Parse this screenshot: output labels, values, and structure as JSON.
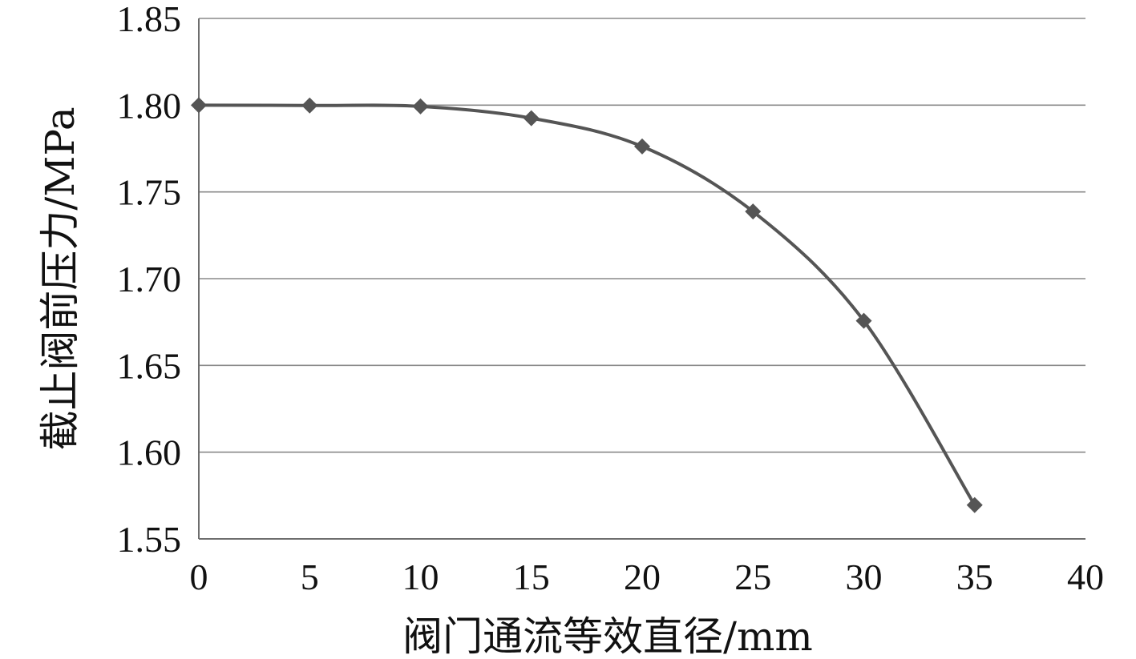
{
  "chart_data": {
    "type": "line",
    "title": "",
    "xlabel": "阀门通流等效直径/mm",
    "ylabel": "截止阀前压力/MPa",
    "xlim": [
      0,
      40
    ],
    "ylim": [
      1.55,
      1.85
    ],
    "x_ticks": [
      "0",
      "5",
      "10",
      "15",
      "20",
      "25",
      "30",
      "35",
      "40"
    ],
    "y_ticks": [
      "1.85",
      "1.80",
      "1.75",
      "1.70",
      "1.65",
      "1.60",
      "1.55"
    ],
    "grid": "horizontal",
    "legend": "none",
    "line_style": "smooth",
    "marker": "diamond",
    "series": [
      {
        "x": [
          0,
          5,
          10,
          15,
          20,
          25,
          30,
          35
        ],
        "values": [
          1.8,
          1.7998,
          1.7993,
          1.7925,
          1.7762,
          1.7387,
          1.6757,
          1.5695
        ]
      }
    ],
    "colors": {
      "series": "#555555",
      "marker": "#555555",
      "gridline": "#8a8a8a",
      "axis": "#6e6e6e",
      "text": "#111111"
    }
  }
}
